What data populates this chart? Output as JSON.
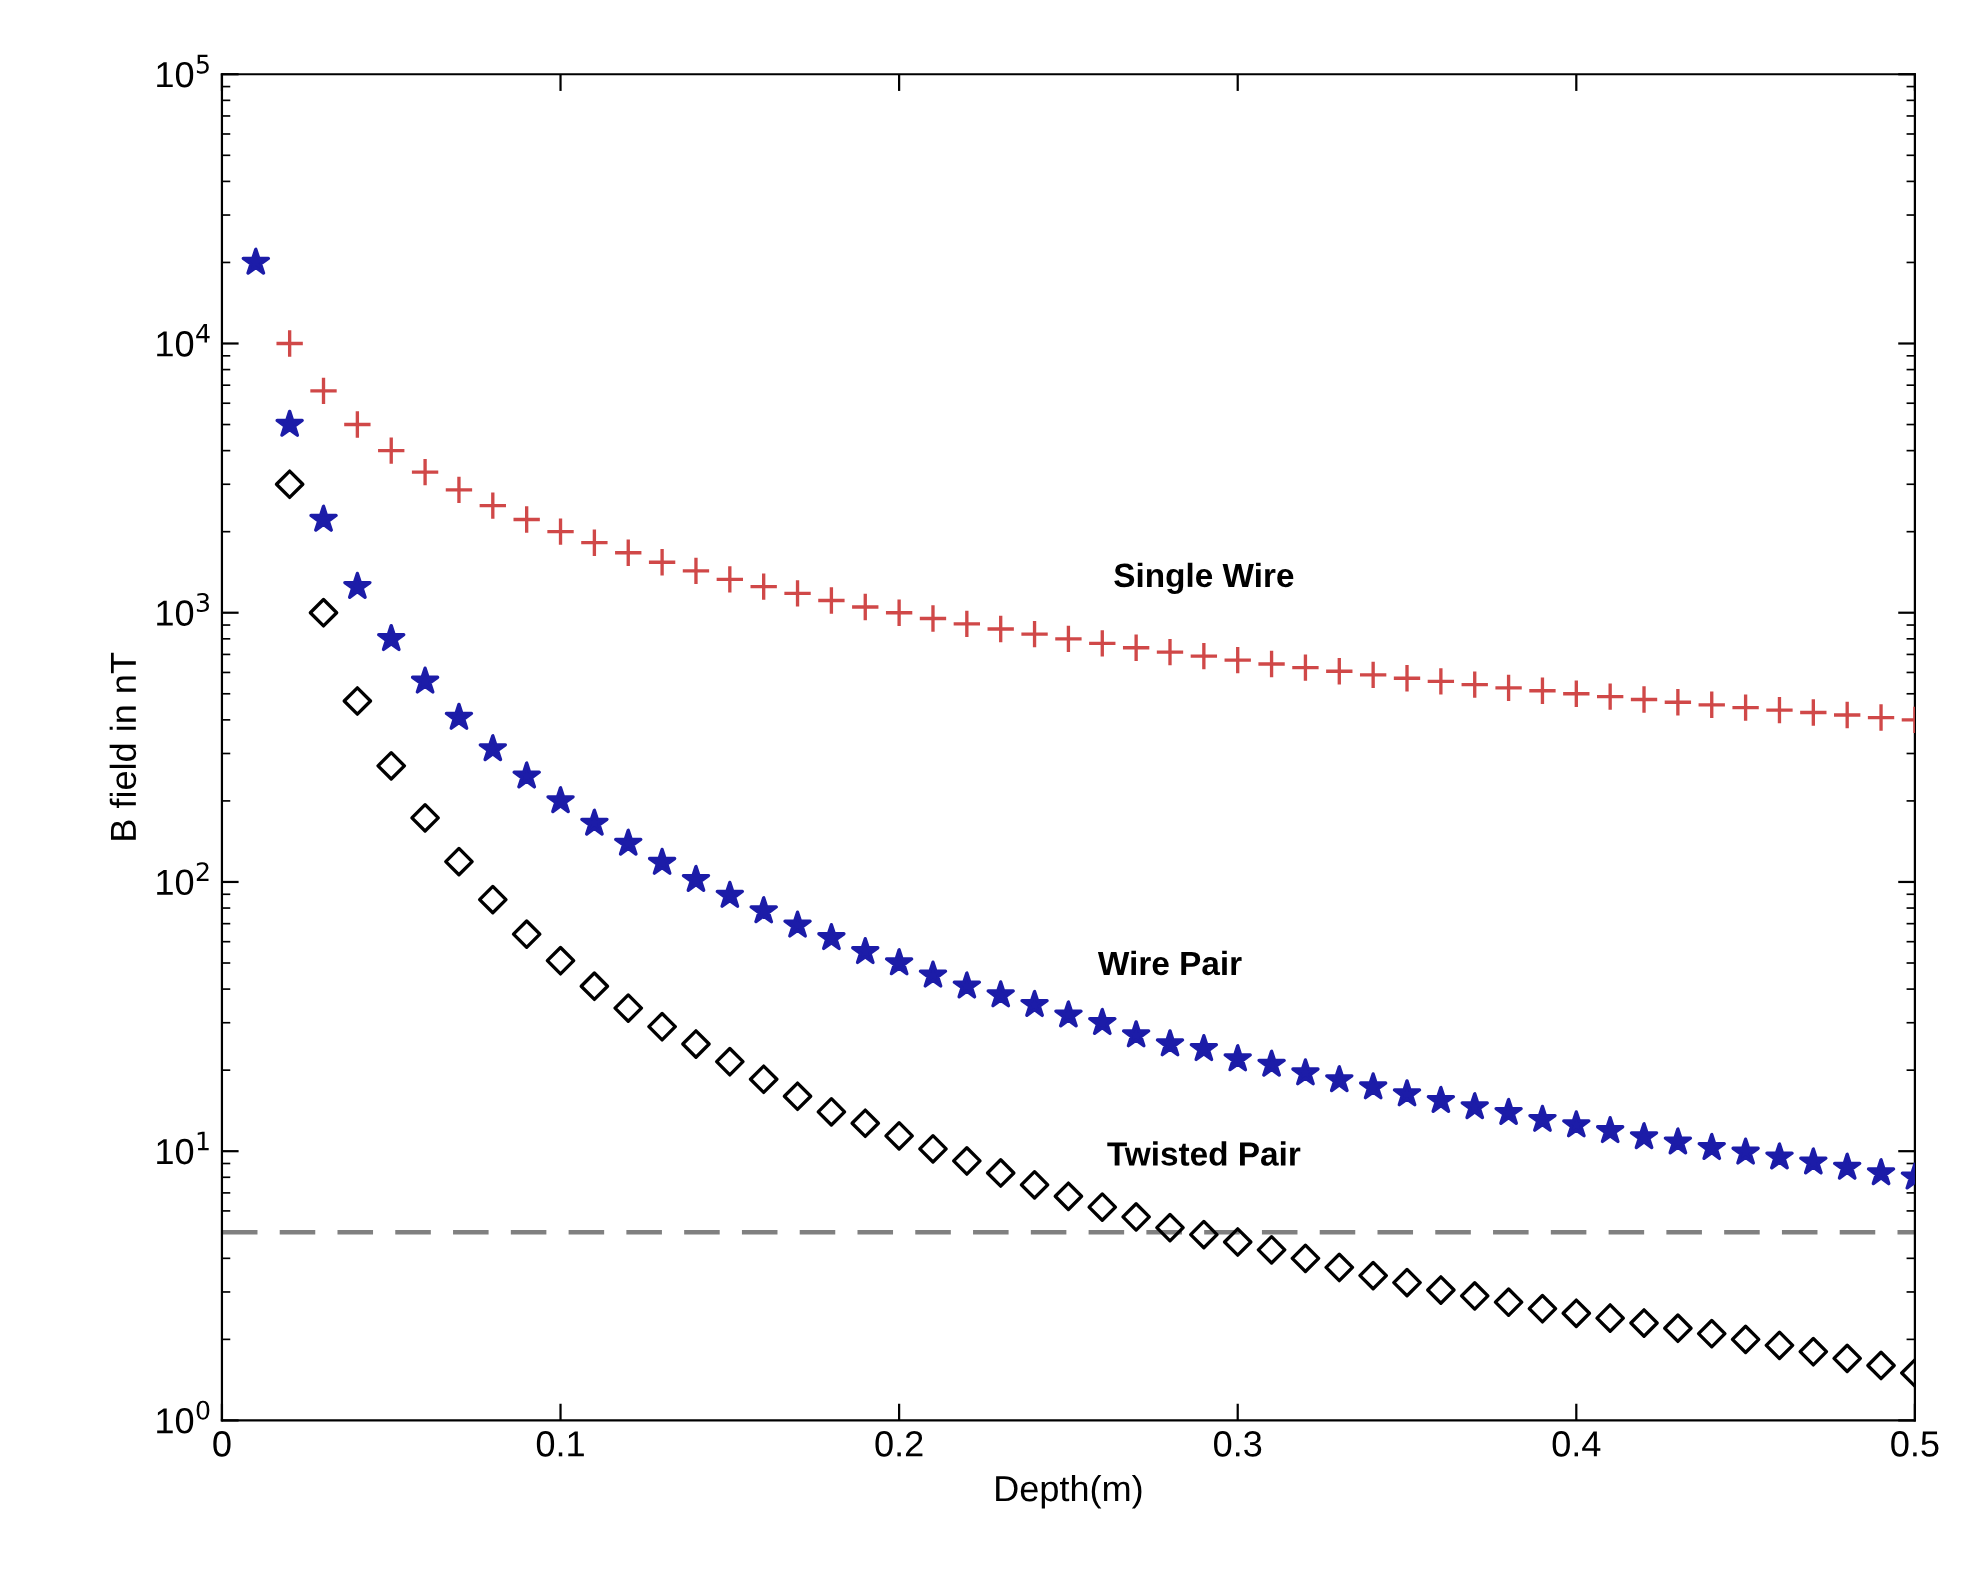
{
  "chart_data": {
    "type": "scatter",
    "xlabel": "Depth(m)",
    "ylabel": "B field in nT",
    "log": "y",
    "x": [
      0.01,
      0.02,
      0.03,
      0.04,
      0.05,
      0.06,
      0.07,
      0.08,
      0.09,
      0.1,
      0.11,
      0.12,
      0.13,
      0.14,
      0.15,
      0.16,
      0.17,
      0.18,
      0.19,
      0.2,
      0.21,
      0.22,
      0.23,
      0.24,
      0.25,
      0.26,
      0.27,
      0.28,
      0.29,
      0.3,
      0.31,
      0.32,
      0.33,
      0.34,
      0.35,
      0.36,
      0.37,
      0.38,
      0.39,
      0.4,
      0.41,
      0.42,
      0.43,
      0.44,
      0.45,
      0.46,
      0.47,
      0.48,
      0.49,
      0.5
    ],
    "series": [
      {
        "name": "Single Wire",
        "color": "#d04848",
        "marker": "cross",
        "values": [
          null,
          10000,
          6670,
          5000,
          4000,
          3330,
          2860,
          2500,
          2220,
          2000,
          1820,
          1670,
          1540,
          1430,
          1330,
          1250,
          1180,
          1110,
          1050,
          1000,
          952,
          909,
          870,
          833,
          800,
          769,
          741,
          714,
          690,
          667,
          645,
          625,
          606,
          588,
          571,
          556,
          541,
          526,
          513,
          500,
          488,
          476,
          465,
          455,
          444,
          435,
          426,
          417,
          408,
          400
        ]
      },
      {
        "name": "Wire Pair",
        "color": "#1c1ca8",
        "marker": "star",
        "values": [
          20000,
          5000,
          2220,
          1250,
          800,
          556,
          408,
          312,
          247,
          200,
          165,
          139,
          118,
          102,
          89,
          78,
          69,
          62,
          55,
          50,
          45,
          41,
          38,
          35,
          32,
          30,
          27,
          25,
          24,
          22,
          21,
          19.5,
          18.4,
          17.3,
          16.3,
          15.4,
          14.6,
          13.9,
          13.1,
          12.5,
          11.9,
          11.3,
          10.8,
          10.3,
          9.9,
          9.5,
          9.1,
          8.7,
          8.3,
          8
        ]
      },
      {
        "name": "Twisted Pair",
        "color": "#000000",
        "marker": "diamond",
        "values": [
          null,
          3000,
          1000,
          470,
          270,
          173,
          119,
          86,
          64,
          51,
          41,
          34,
          29,
          25,
          21.5,
          18.5,
          16,
          14,
          12.7,
          11.4,
          10.2,
          9.2,
          8.3,
          7.5,
          6.8,
          6.2,
          5.7,
          5.2,
          4.9,
          4.6,
          4.3,
          4.0,
          3.7,
          3.45,
          3.25,
          3.05,
          2.9,
          2.75,
          2.6,
          2.5,
          2.4,
          2.3,
          2.2,
          2.1,
          2.0,
          1.9,
          1.8,
          1.7,
          1.6,
          1.5
        ]
      }
    ],
    "ref_lines": [
      {
        "axis": "y",
        "value": 5,
        "label": null,
        "color": "#808080",
        "line_style": "dashed"
      }
    ],
    "xlim": [
      0,
      0.5
    ],
    "xticks": [
      0,
      0.1,
      0.2,
      0.3,
      0.4,
      0.5
    ],
    "ylim": [
      1,
      100000
    ],
    "yticks": [
      {
        "value": 1,
        "label": "10$^{0}$"
      },
      {
        "value": 10,
        "label": "10$^{1}$"
      },
      {
        "value": 100,
        "label": "10$^{2}$"
      },
      {
        "value": 1000,
        "label": "10$^{3}$"
      },
      {
        "value": 10000,
        "label": "10$^{4}$"
      },
      {
        "value": 100000,
        "label": "10$^{5}$"
      }
    ],
    "grid": false,
    "legend": false
  }
}
